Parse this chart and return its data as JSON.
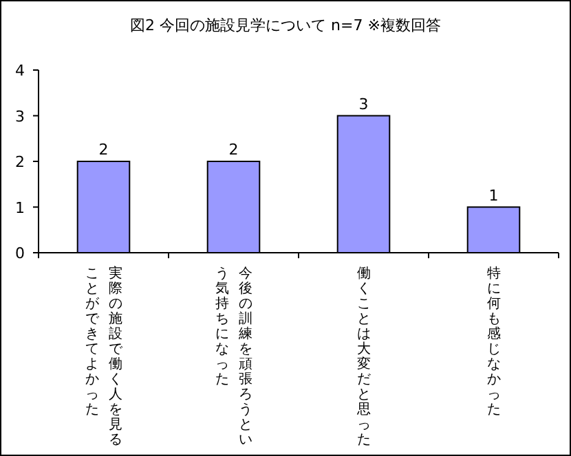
{
  "chart_data": {
    "type": "bar",
    "title": "図2 今回の施設見学について n=7 ※複数回答",
    "categories": [
      "実際の施設で働く人を見ることができてよかった",
      "今後の訓練を頑張ろうという気持ちになった",
      "働くことは大変だと思った",
      "特に何も感じなかった"
    ],
    "values": [
      2,
      2,
      3,
      1
    ],
    "color": "#9999ff",
    "ylim": [
      0,
      4
    ],
    "yticks": [
      0,
      1,
      2,
      3,
      4
    ],
    "grid": false,
    "data_labels": true,
    "legend": false
  }
}
